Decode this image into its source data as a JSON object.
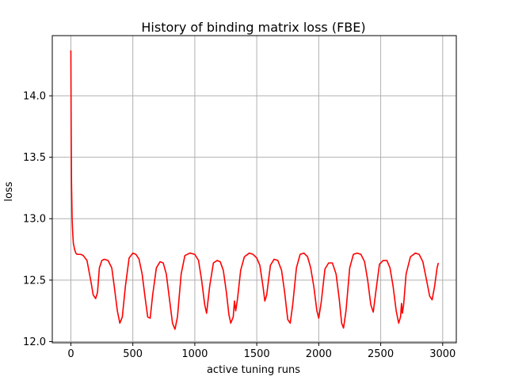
{
  "chart_data": {
    "type": "line",
    "title": "History of binding matrix loss (FBE)",
    "xlabel": "active tuning runs",
    "ylabel": "loss",
    "xlim": [
      -150,
      3110
    ],
    "ylim": [
      11.99,
      14.49
    ],
    "xticks": [
      0,
      500,
      1000,
      1500,
      2000,
      2500,
      3000
    ],
    "xtick_labels": [
      "0",
      "500",
      "1000",
      "1500",
      "2000",
      "2500",
      "3000"
    ],
    "yticks": [
      12.0,
      12.5,
      13.0,
      13.5,
      14.0
    ],
    "ytick_labels": [
      "12.0",
      "12.5",
      "13.0",
      "13.5",
      "14.0"
    ],
    "grid": true,
    "color": "#ff0000",
    "series": [
      {
        "x": [
          0,
          2,
          5,
          10,
          15,
          20,
          30,
          40,
          50,
          60,
          80,
          100,
          130,
          160,
          180,
          200,
          215,
          230,
          250,
          270,
          300,
          330,
          350,
          375,
          395,
          415,
          440,
          470,
          500,
          525,
          550,
          575,
          600,
          620,
          640,
          660,
          690,
          720,
          745,
          770,
          795,
          820,
          840,
          860,
          890,
          920,
          960,
          1000,
          1030,
          1055,
          1080,
          1095,
          1120,
          1150,
          1180,
          1205,
          1230,
          1255,
          1275,
          1290,
          1310,
          1320,
          1330,
          1345,
          1370,
          1400,
          1440,
          1470,
          1500,
          1525,
          1550,
          1565,
          1580,
          1610,
          1640,
          1670,
          1700,
          1725,
          1750,
          1770,
          1790,
          1820,
          1850,
          1880,
          1910,
          1935,
          1960,
          1985,
          2000,
          2020,
          2050,
          2080,
          2110,
          2140,
          2165,
          2185,
          2200,
          2220,
          2250,
          2280,
          2310,
          2340,
          2370,
          2395,
          2420,
          2440,
          2460,
          2490,
          2520,
          2550,
          2575,
          2600,
          2625,
          2645,
          2660,
          2668,
          2675,
          2685,
          2705,
          2740,
          2780,
          2810,
          2840,
          2870,
          2895,
          2915,
          2935,
          2955,
          2965
        ],
        "y": [
          14.37,
          13.8,
          13.3,
          13.0,
          12.88,
          12.8,
          12.75,
          12.72,
          12.71,
          12.71,
          12.71,
          12.7,
          12.66,
          12.5,
          12.38,
          12.35,
          12.4,
          12.6,
          12.66,
          12.67,
          12.66,
          12.6,
          12.45,
          12.25,
          12.15,
          12.2,
          12.45,
          12.68,
          12.72,
          12.71,
          12.67,
          12.55,
          12.35,
          12.2,
          12.19,
          12.38,
          12.6,
          12.65,
          12.64,
          12.55,
          12.35,
          12.15,
          12.1,
          12.2,
          12.55,
          12.7,
          12.72,
          12.71,
          12.66,
          12.5,
          12.3,
          12.23,
          12.45,
          12.64,
          12.66,
          12.65,
          12.58,
          12.4,
          12.22,
          12.15,
          12.2,
          12.33,
          12.25,
          12.35,
          12.58,
          12.69,
          12.72,
          12.71,
          12.68,
          12.62,
          12.45,
          12.33,
          12.38,
          12.62,
          12.67,
          12.66,
          12.58,
          12.4,
          12.18,
          12.15,
          12.3,
          12.6,
          12.71,
          12.72,
          12.69,
          12.6,
          12.45,
          12.25,
          12.19,
          12.32,
          12.59,
          12.64,
          12.64,
          12.55,
          12.35,
          12.15,
          12.11,
          12.25,
          12.6,
          12.71,
          12.72,
          12.71,
          12.65,
          12.5,
          12.3,
          12.24,
          12.4,
          12.63,
          12.66,
          12.66,
          12.6,
          12.45,
          12.25,
          12.15,
          12.2,
          12.31,
          12.23,
          12.3,
          12.55,
          12.69,
          12.72,
          12.71,
          12.65,
          12.5,
          12.37,
          12.34,
          12.45,
          12.6,
          12.64
        ]
      }
    ]
  }
}
